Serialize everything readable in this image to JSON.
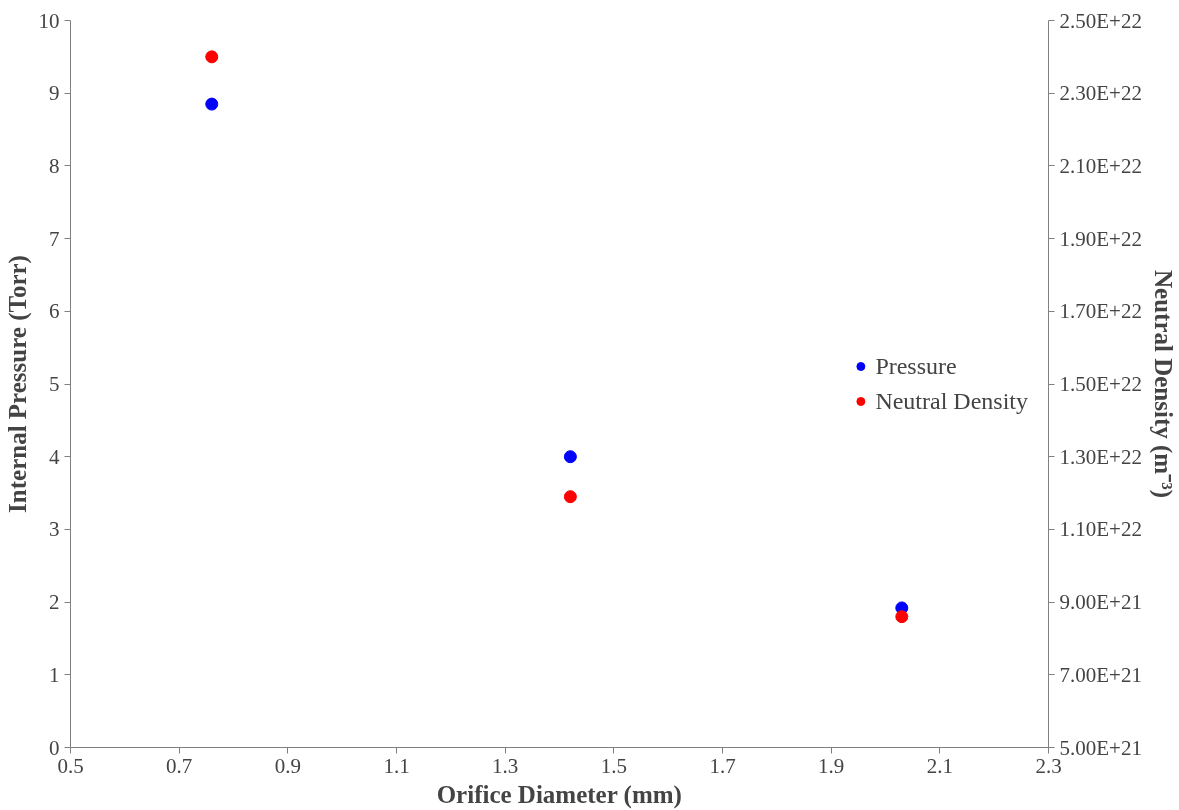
{
  "chart_data": {
    "type": "scatter",
    "xlabel": "Orifice Diameter (mm)",
    "ylabel": "Internal Pressure (Torr)",
    "y2label": "Neutral Density (m⁻³)",
    "x": [
      0.76,
      1.42,
      2.03
    ],
    "series": [
      {
        "name": "Pressure",
        "color": "#0000ff",
        "values": [
          8.85,
          4.0,
          1.92
        ]
      },
      {
        "name": "Neutral Density",
        "color": "#ff0000",
        "axis": "y2",
        "values": [
          2.4e+22,
          1.19e+22,
          8.6e+21
        ]
      }
    ],
    "xlim": [
      0.5,
      2.3
    ],
    "xticks": [
      0.5,
      0.7,
      0.9,
      1.1,
      1.3,
      1.5,
      1.7,
      1.9,
      2.1,
      2.3
    ],
    "ylim": [
      0,
      10
    ],
    "yticks": [
      0,
      1,
      2,
      3,
      4,
      5,
      6,
      7,
      8,
      9,
      10
    ],
    "y2lim": [
      5e+21,
      2.5e+22
    ],
    "y2ticks": [
      {
        "value": 5e+21,
        "label": "5.00E+21"
      },
      {
        "value": 7e+21,
        "label": "7.00E+21"
      },
      {
        "value": 9e+21,
        "label": "9.00E+21"
      },
      {
        "value": 1.1e+22,
        "label": "1.10E+22"
      },
      {
        "value": 1.3e+22,
        "label": "1.30E+22"
      },
      {
        "value": 1.5e+22,
        "label": "1.50E+22"
      },
      {
        "value": 1.7e+22,
        "label": "1.70E+22"
      },
      {
        "value": 1.9e+22,
        "label": "1.90E+22"
      },
      {
        "value": 2.1e+22,
        "label": "2.10E+22"
      },
      {
        "value": 2.3e+22,
        "label": "2.30E+22"
      },
      {
        "value": 2.5e+22,
        "label": "2.50E+22"
      }
    ],
    "grid": false,
    "legend": "right",
    "marker": "circle"
  }
}
